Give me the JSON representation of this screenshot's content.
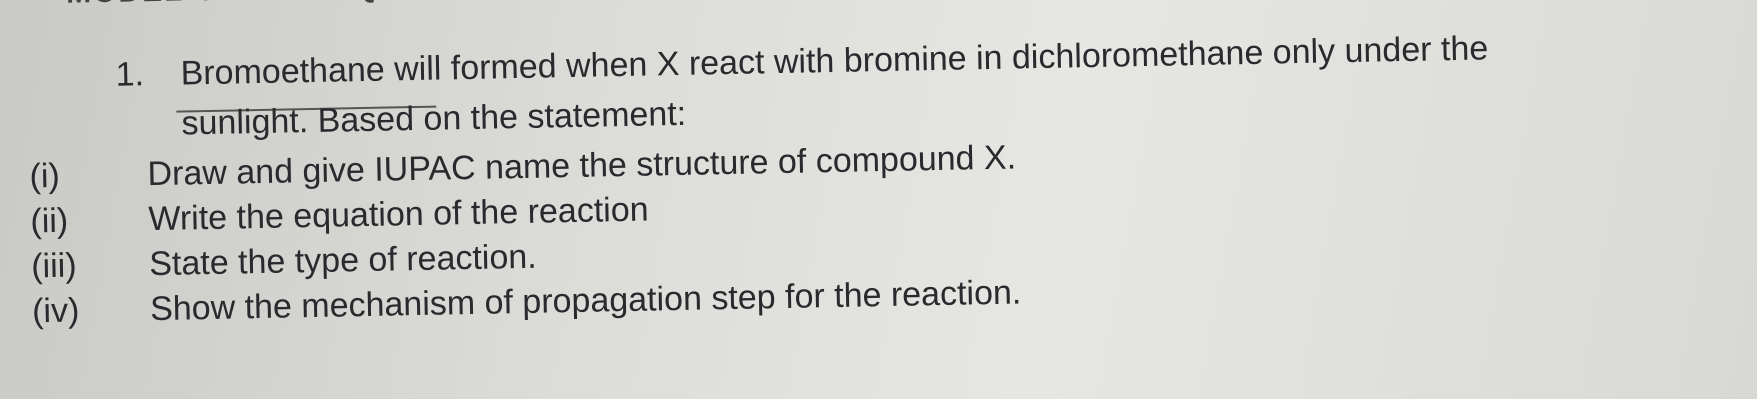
{
  "header": {
    "title": "MODEL OF PSPM QUESTIONS"
  },
  "question": {
    "number": "1.",
    "lines": [
      "Bromoethane will formed when X react with bromine in dichloromethane only under the",
      "sunlight. Based on the statement:"
    ]
  },
  "parts": [
    {
      "label": "(i)",
      "text": "Draw and give IUPAC name the structure of compound X."
    },
    {
      "label": "(ii)",
      "text": "Write the equation of the reaction"
    },
    {
      "label": "(iii)",
      "text": "State the type of reaction."
    },
    {
      "label": "(iv)",
      "text": "Show the mechanism of propagation step for the reaction."
    }
  ]
}
